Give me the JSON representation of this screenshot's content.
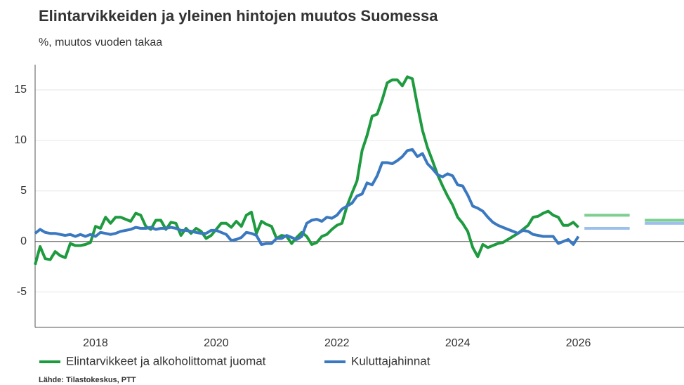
{
  "chart_data": {
    "type": "line",
    "title": "Elintarvikkeiden ja yleinen hintojen muutos Suomessa",
    "subtitle": "%, muutos vuoden takaa",
    "source": "Lähde: Tilastokeskus, PTT",
    "x": [
      2017,
      2017.083,
      2017.167,
      2017.25,
      2017.333,
      2017.417,
      2017.5,
      2017.583,
      2017.667,
      2017.75,
      2017.833,
      2017.917,
      2018,
      2018.083,
      2018.167,
      2018.25,
      2018.333,
      2018.417,
      2018.5,
      2018.583,
      2018.667,
      2018.75,
      2018.833,
      2018.917,
      2019,
      2019.083,
      2019.167,
      2019.25,
      2019.333,
      2019.417,
      2019.5,
      2019.583,
      2019.667,
      2019.75,
      2019.833,
      2019.917,
      2020,
      2020.083,
      2020.167,
      2020.25,
      2020.333,
      2020.417,
      2020.5,
      2020.583,
      2020.667,
      2020.75,
      2020.833,
      2020.917,
      2021,
      2021.083,
      2021.167,
      2021.25,
      2021.333,
      2021.417,
      2021.5,
      2021.583,
      2021.667,
      2021.75,
      2021.833,
      2021.917,
      2022,
      2022.083,
      2022.167,
      2022.25,
      2022.333,
      2022.417,
      2022.5,
      2022.583,
      2022.667,
      2022.75,
      2022.833,
      2022.917,
      2023,
      2023.083,
      2023.167,
      2023.25,
      2023.333,
      2023.417,
      2023.5,
      2023.583,
      2023.667,
      2023.75,
      2023.833,
      2023.917,
      2024,
      2024.083,
      2024.167,
      2024.25,
      2024.333,
      2024.417,
      2024.5,
      2024.583,
      2024.667,
      2024.75,
      2024.833,
      2024.917,
      2025,
      2025.083,
      2025.167,
      2025.25,
      2025.333,
      2025.417,
      2025.5,
      2025.583,
      2025.667,
      2025.75,
      2025.833,
      2025.917,
      2026
    ],
    "series": [
      {
        "name": "Elintarvikkeet ja alkoholittomat juomat",
        "color": "#1e9a3f",
        "values": [
          -2.3,
          -0.5,
          -1.7,
          -1.8,
          -1.0,
          -1.4,
          -1.6,
          -0.2,
          -0.4,
          -0.4,
          -0.3,
          -0.1,
          1.5,
          1.3,
          2.4,
          1.8,
          2.4,
          2.4,
          2.2,
          2.0,
          2.8,
          2.6,
          1.5,
          1.2,
          2.1,
          2.1,
          1.2,
          1.9,
          1.8,
          0.6,
          1.3,
          0.8,
          1.3,
          1.0,
          0.3,
          0.6,
          1.2,
          1.8,
          1.8,
          1.4,
          2.0,
          1.5,
          2.6,
          2.9,
          0.8,
          2.0,
          1.7,
          1.5,
          0.3,
          0.6,
          0.5,
          -0.2,
          0.4,
          0.9,
          0.5,
          -0.3,
          -0.1,
          0.5,
          0.7,
          1.2,
          1.6,
          1.8,
          3.5,
          4.8,
          6.0,
          9.0,
          10.5,
          12.4,
          12.6,
          14.0,
          15.7,
          16.0,
          16.0,
          15.4,
          16.3,
          16.1,
          13.5,
          11.0,
          9.3,
          8.0,
          6.6,
          5.5,
          4.5,
          3.6,
          2.4,
          1.8,
          1.0,
          -0.6,
          -1.5,
          -0.3,
          -0.6,
          -0.4,
          -0.2,
          -0.1,
          0.2,
          0.5,
          0.8,
          1.2,
          1.6,
          2.4,
          2.5,
          2.8,
          3.0,
          2.6,
          2.4,
          1.6,
          1.6,
          1.9,
          1.4
        ]
      },
      {
        "name": "Kuluttajahinnat",
        "color": "#3a78c0",
        "values": [
          0.8,
          1.2,
          0.9,
          0.8,
          0.8,
          0.7,
          0.6,
          0.7,
          0.5,
          0.7,
          0.5,
          0.7,
          0.5,
          0.9,
          0.8,
          0.7,
          0.8,
          1.0,
          1.1,
          1.2,
          1.4,
          1.3,
          1.3,
          1.4,
          1.2,
          1.3,
          1.3,
          1.4,
          1.3,
          1.1,
          1.1,
          1.0,
          0.9,
          0.8,
          0.8,
          1.1,
          1.1,
          0.9,
          0.7,
          0.1,
          0.2,
          0.4,
          0.9,
          0.8,
          0.6,
          -0.3,
          -0.2,
          -0.2,
          0.3,
          0.3,
          0.6,
          0.4,
          0.2,
          0.5,
          1.8,
          2.1,
          2.2,
          2.0,
          2.4,
          2.3,
          2.6,
          3.2,
          3.5,
          3.8,
          4.5,
          4.7,
          5.8,
          5.6,
          6.5,
          7.8,
          7.8,
          7.7,
          8.0,
          8.4,
          9.0,
          9.1,
          8.4,
          8.7,
          7.7,
          7.2,
          6.6,
          6.4,
          6.7,
          6.5,
          5.6,
          5.5,
          4.6,
          3.5,
          3.3,
          3.0,
          2.4,
          1.9,
          1.6,
          1.4,
          1.2,
          1.0,
          0.8,
          1.1,
          1.0,
          0.7,
          0.6,
          0.5,
          0.5,
          0.5,
          -0.2,
          0.0,
          0.2,
          -0.3,
          0.5
        ]
      }
    ],
    "forecasts": [
      {
        "color": "#7ccf91",
        "x": [
          2026.1,
          2026.85
        ],
        "values": [
          2.6,
          2.6
        ]
      },
      {
        "color": "#7ccf91",
        "x": [
          2027.1,
          2027.75
        ],
        "values": [
          2.1,
          2.1
        ]
      },
      {
        "color": "#9cc0ea",
        "x": [
          2026.1,
          2026.85
        ],
        "values": [
          1.3,
          1.3
        ]
      },
      {
        "color": "#9cc0ea",
        "x": [
          2027.1,
          2027.75
        ],
        "values": [
          1.8,
          1.8
        ]
      }
    ],
    "xlim": [
      2017,
      2027.75
    ],
    "xticks": [
      2018,
      2020,
      2022,
      2024,
      2026
    ],
    "ylim": [
      -8.5,
      17.5
    ],
    "yticks": [
      -5,
      0,
      5,
      10,
      15
    ],
    "grid": true
  }
}
